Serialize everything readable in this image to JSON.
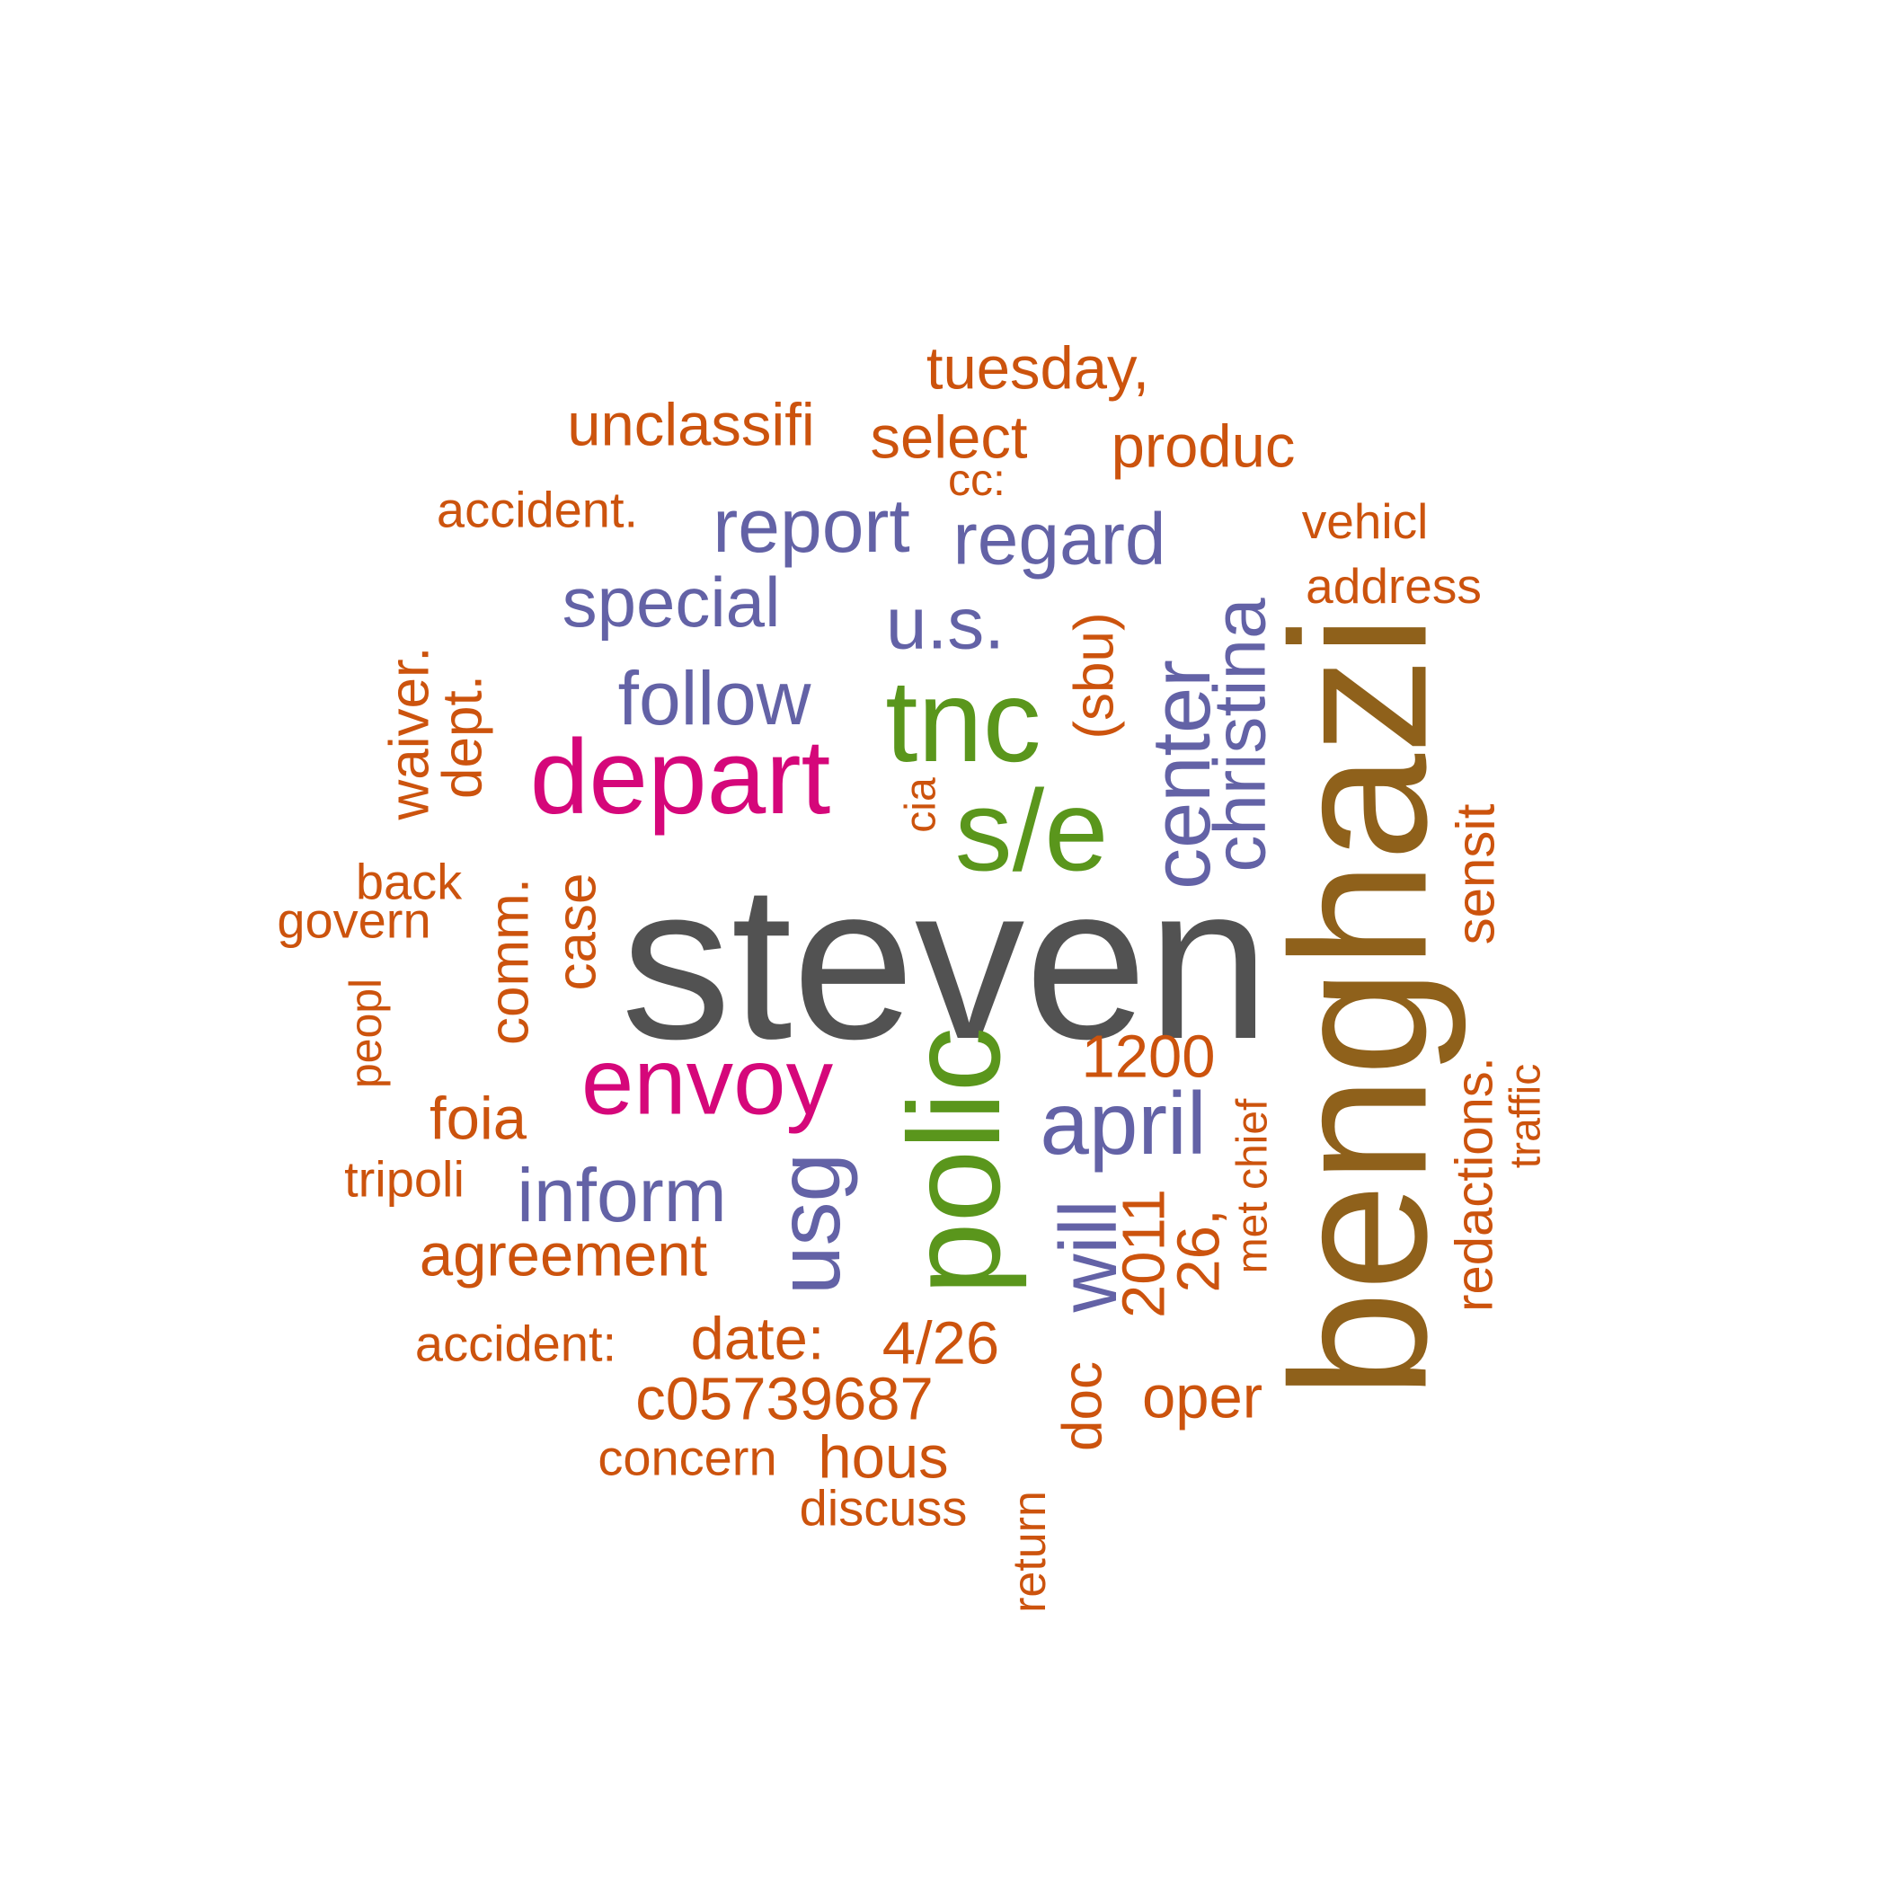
{
  "colors": {
    "steven": "#525252",
    "benghazi": "#8f611b",
    "green": "#5a961c",
    "magenta": "#d5077a",
    "purple": "#6362a6",
    "orange": "#cc530d"
  },
  "words": [
    {
      "text": "steven",
      "color_group": "steven"
    },
    {
      "text": "benghazi",
      "color_group": "benghazi"
    },
    {
      "text": "polic",
      "color_group": "green"
    },
    {
      "text": "tnc",
      "color_group": "green"
    },
    {
      "text": "s/e",
      "color_group": "green"
    },
    {
      "text": "depart",
      "color_group": "magenta"
    },
    {
      "text": "envoy",
      "color_group": "magenta"
    },
    {
      "text": "center",
      "color_group": "purple"
    },
    {
      "text": "christina",
      "color_group": "purple"
    },
    {
      "text": "april",
      "color_group": "purple"
    },
    {
      "text": "usg",
      "color_group": "purple"
    },
    {
      "text": "will",
      "color_group": "purple"
    },
    {
      "text": "report",
      "color_group": "purple"
    },
    {
      "text": "regard",
      "color_group": "purple"
    },
    {
      "text": "special",
      "color_group": "purple"
    },
    {
      "text": "u.s.",
      "color_group": "purple"
    },
    {
      "text": "follow",
      "color_group": "purple"
    },
    {
      "text": "inform",
      "color_group": "purple"
    },
    {
      "text": "tuesday,",
      "color_group": "orange"
    },
    {
      "text": "unclassifi",
      "color_group": "orange"
    },
    {
      "text": "select",
      "color_group": "orange"
    },
    {
      "text": "produc",
      "color_group": "orange"
    },
    {
      "text": "cc:",
      "color_group": "orange"
    },
    {
      "text": "accident.",
      "color_group": "orange"
    },
    {
      "text": "vehicl",
      "color_group": "orange"
    },
    {
      "text": "address",
      "color_group": "orange"
    },
    {
      "text": "(sbu)",
      "color_group": "orange"
    },
    {
      "text": "waiver.",
      "color_group": "orange"
    },
    {
      "text": "dept.",
      "color_group": "orange"
    },
    {
      "text": "cia",
      "color_group": "orange"
    },
    {
      "text": "back",
      "color_group": "orange"
    },
    {
      "text": "govern",
      "color_group": "orange"
    },
    {
      "text": "comm.",
      "color_group": "orange"
    },
    {
      "text": "case",
      "color_group": "orange"
    },
    {
      "text": "sensit",
      "color_group": "orange"
    },
    {
      "text": "peopl",
      "color_group": "orange"
    },
    {
      "text": "1200",
      "color_group": "orange"
    },
    {
      "text": "foia",
      "color_group": "orange"
    },
    {
      "text": "met chief",
      "color_group": "orange"
    },
    {
      "text": "redactions.",
      "color_group": "orange"
    },
    {
      "text": "traffic",
      "color_group": "orange"
    },
    {
      "text": "tripoli",
      "color_group": "orange"
    },
    {
      "text": "2011",
      "color_group": "orange"
    },
    {
      "text": "26,",
      "color_group": "orange"
    },
    {
      "text": "agreement",
      "color_group": "orange"
    },
    {
      "text": "accident:",
      "color_group": "orange"
    },
    {
      "text": "date:",
      "color_group": "orange"
    },
    {
      "text": "4/26",
      "color_group": "orange"
    },
    {
      "text": "c05739687",
      "color_group": "orange"
    },
    {
      "text": "doc",
      "color_group": "orange"
    },
    {
      "text": "oper",
      "color_group": "orange"
    },
    {
      "text": "concern",
      "color_group": "orange"
    },
    {
      "text": "hous",
      "color_group": "orange"
    },
    {
      "text": "discuss",
      "color_group": "orange"
    },
    {
      "text": "return",
      "color_group": "orange"
    }
  ]
}
